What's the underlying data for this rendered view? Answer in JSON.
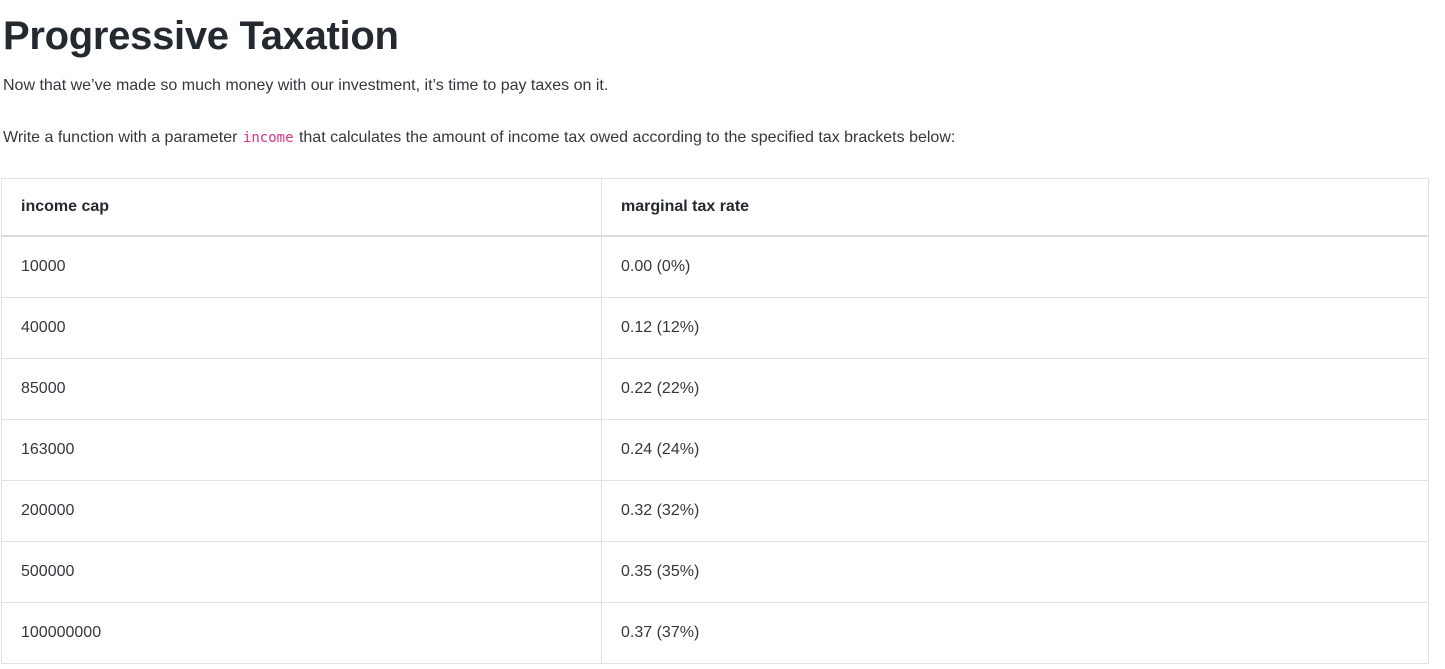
{
  "page": {
    "title": "Progressive Taxation",
    "intro": "Now that we’ve made so much money with our investment, it’s time to pay taxes on it.",
    "task_before_code": "Write a function with a parameter ",
    "task_code": "income",
    "task_after_code": " that calculates the amount of income tax owed according to the specified tax brackets below:"
  },
  "table": {
    "headers": [
      "income cap",
      "marginal tax rate"
    ],
    "rows": [
      [
        "10000",
        "0.00 (0%)"
      ],
      [
        "40000",
        "0.12 (12%)"
      ],
      [
        "85000",
        "0.22 (22%)"
      ],
      [
        "163000",
        "0.24 (24%)"
      ],
      [
        "200000",
        "0.32 (32%)"
      ],
      [
        "500000",
        "0.35 (35%)"
      ],
      [
        "100000000",
        "0.37 (37%)"
      ]
    ]
  },
  "colors": {
    "text": "#212529",
    "inline_code": "#d63384",
    "table_border": "#dee2e6",
    "header_bottom_border": "#d9dde2",
    "background": "#ffffff"
  }
}
